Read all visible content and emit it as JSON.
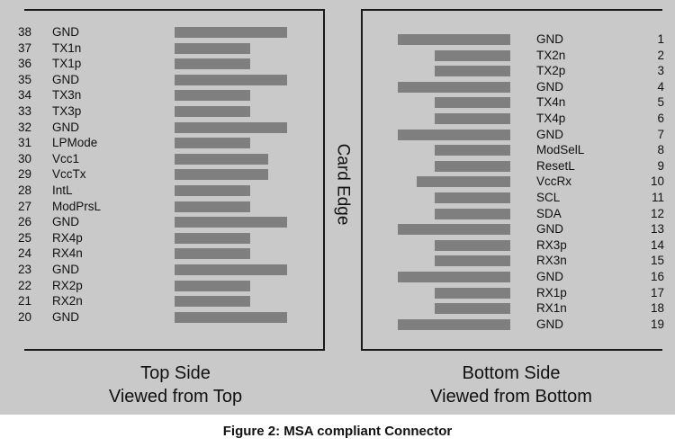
{
  "card_edge_label": "Card Edge",
  "top_side": {
    "caption_line1": "Top Side",
    "caption_line2": "Viewed from Top",
    "pins": [
      {
        "num": "38",
        "label": "GND",
        "bar": "long"
      },
      {
        "num": "37",
        "label": "TX1n",
        "bar": "short"
      },
      {
        "num": "36",
        "label": "TX1p",
        "bar": "short"
      },
      {
        "num": "35",
        "label": "GND",
        "bar": "long"
      },
      {
        "num": "34",
        "label": "TX3n",
        "bar": "short"
      },
      {
        "num": "33",
        "label": "TX3p",
        "bar": "short"
      },
      {
        "num": "32",
        "label": "GND",
        "bar": "long"
      },
      {
        "num": "31",
        "label": "LPMode",
        "bar": "short"
      },
      {
        "num": "30",
        "label": "Vcc1",
        "bar": "medium"
      },
      {
        "num": "29",
        "label": "VccTx",
        "bar": "medium"
      },
      {
        "num": "28",
        "label": "IntL",
        "bar": "short"
      },
      {
        "num": "27",
        "label": "ModPrsL",
        "bar": "short"
      },
      {
        "num": "26",
        "label": "GND",
        "bar": "long"
      },
      {
        "num": "25",
        "label": "RX4p",
        "bar": "short"
      },
      {
        "num": "24",
        "label": "RX4n",
        "bar": "short"
      },
      {
        "num": "23",
        "label": "GND",
        "bar": "long"
      },
      {
        "num": "22",
        "label": "RX2p",
        "bar": "short"
      },
      {
        "num": "21",
        "label": "RX2n",
        "bar": "short"
      },
      {
        "num": "20",
        "label": "GND",
        "bar": "long"
      }
    ]
  },
  "bottom_side": {
    "caption_line1": "Bottom Side",
    "caption_line2": "Viewed from Bottom",
    "pins": [
      {
        "num": "1",
        "label": "GND",
        "bar": "long"
      },
      {
        "num": "2",
        "label": "TX2n",
        "bar": "short"
      },
      {
        "num": "3",
        "label": "TX2p",
        "bar": "short"
      },
      {
        "num": "4",
        "label": "GND",
        "bar": "long"
      },
      {
        "num": "5",
        "label": "TX4n",
        "bar": "short"
      },
      {
        "num": "6",
        "label": "TX4p",
        "bar": "short"
      },
      {
        "num": "7",
        "label": "GND",
        "bar": "long"
      },
      {
        "num": "8",
        "label": "ModSelL",
        "bar": "short"
      },
      {
        "num": "9",
        "label": "ResetL",
        "bar": "short"
      },
      {
        "num": "10",
        "label": "VccRx",
        "bar": "medium"
      },
      {
        "num": "11",
        "label": "SCL",
        "bar": "short"
      },
      {
        "num": "12",
        "label": "SDA",
        "bar": "short"
      },
      {
        "num": "13",
        "label": "GND",
        "bar": "long"
      },
      {
        "num": "14",
        "label": "RX3p",
        "bar": "short"
      },
      {
        "num": "15",
        "label": "RX3n",
        "bar": "short"
      },
      {
        "num": "16",
        "label": "GND",
        "bar": "long"
      },
      {
        "num": "17",
        "label": "RX1p",
        "bar": "short"
      },
      {
        "num": "18",
        "label": "RX1n",
        "bar": "short"
      },
      {
        "num": "19",
        "label": "GND",
        "bar": "long"
      }
    ]
  },
  "figure_caption": "Figure 2:  MSA compliant Connector",
  "colors": {
    "background": "#c9c9c9",
    "bar": "#7f7f7f",
    "frame": "#1a1a1a",
    "text": "#111111"
  }
}
